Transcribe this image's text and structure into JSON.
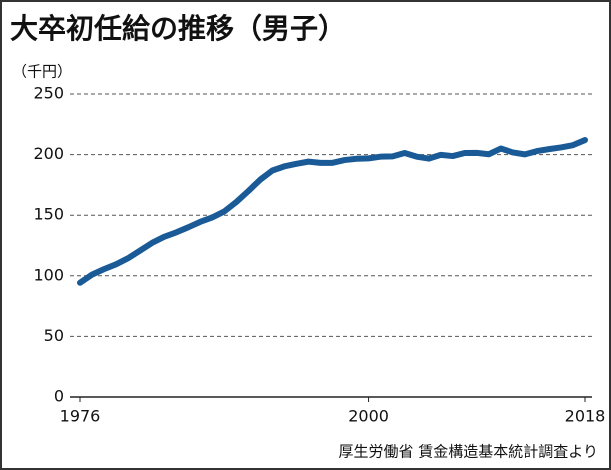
{
  "chart_data": {
    "type": "line",
    "title": "大卒初任給の推移（男子）",
    "y_label": "（千円）",
    "source": "厚生労働省 賃金構造基本統計調査より",
    "x": [
      1976,
      1977,
      1978,
      1979,
      1980,
      1981,
      1982,
      1983,
      1984,
      1985,
      1986,
      1987,
      1988,
      1989,
      1990,
      1991,
      1992,
      1993,
      1994,
      1995,
      1996,
      1997,
      1998,
      1999,
      2000,
      2001,
      2002,
      2003,
      2004,
      2005,
      2006,
      2007,
      2008,
      2009,
      2010,
      2011,
      2012,
      2013,
      2014,
      2015,
      2016,
      2017,
      2018
    ],
    "series": [
      {
        "name": "大卒初任給（男子）",
        "color": "#1a5a96",
        "values": [
          94.3,
          101.0,
          105.5,
          109.5,
          114.5,
          120.8,
          127.2,
          132.2,
          135.8,
          140.0,
          144.5,
          148.2,
          153.1,
          160.9,
          169.9,
          179.4,
          186.9,
          190.3,
          192.4,
          194.2,
          193.2,
          193.2,
          195.5,
          196.6,
          196.9,
          198.3,
          198.5,
          201.3,
          198.3,
          196.7,
          199.8,
          198.8,
          201.3,
          201.4,
          200.3,
          205.0,
          201.8,
          200.2,
          202.9,
          204.5,
          205.9,
          207.8,
          212.0
        ]
      }
    ],
    "xlim": [
      1976,
      2018
    ],
    "xticks": [
      1976,
      2000,
      2018
    ],
    "ylim": [
      0,
      250
    ],
    "yticks": [
      0,
      50,
      100,
      150,
      200,
      250
    ],
    "grid": true
  }
}
